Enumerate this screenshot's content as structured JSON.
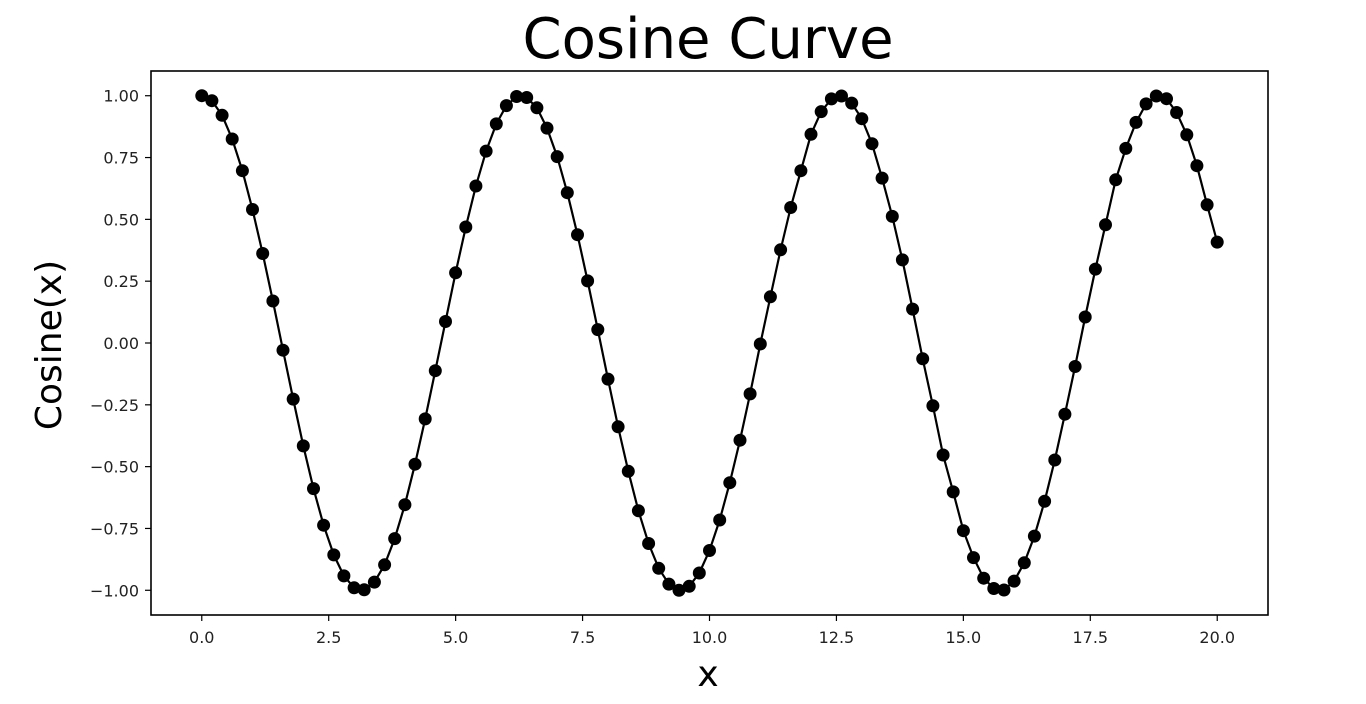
{
  "chart_data": {
    "type": "line",
    "title": "Cosine Curve",
    "xlabel": "x",
    "ylabel": "Cosine(x)",
    "xlim": [
      -1.0,
      21.0
    ],
    "ylim": [
      -1.1,
      1.1
    ],
    "x_ticks": [
      0.0,
      2.5,
      5.0,
      7.5,
      10.0,
      12.5,
      15.0,
      17.5,
      20.0
    ],
    "x_tick_labels": [
      "0.0",
      "2.5",
      "5.0",
      "7.5",
      "10.0",
      "12.5",
      "15.0",
      "17.5",
      "20.0"
    ],
    "y_ticks": [
      1.0,
      0.75,
      0.5,
      0.25,
      0.0,
      -0.25,
      -0.5,
      -0.75,
      -1.0
    ],
    "y_tick_labels": [
      "1.00",
      "0.75",
      "0.50",
      "0.25",
      "0.00",
      "−0.25",
      "−0.50",
      "−0.75",
      "−1.00"
    ],
    "grid": false,
    "line_color": "#000000",
    "marker": "circle",
    "series": [
      {
        "x": [
          0.0,
          0.2,
          0.4,
          0.6,
          0.8,
          1.0,
          1.2,
          1.4,
          1.6,
          1.8,
          2.0,
          2.2,
          2.4,
          2.6,
          2.8,
          3.0,
          3.2,
          3.4,
          3.6,
          3.8,
          4.0,
          4.2,
          4.4,
          4.6,
          4.8,
          5.0,
          5.2,
          5.4,
          5.6,
          5.8,
          6.0,
          6.2,
          6.4,
          6.6,
          6.8,
          7.0,
          7.2,
          7.4,
          7.6,
          7.8,
          8.0,
          8.2,
          8.4,
          8.6,
          8.8,
          9.0,
          9.2,
          9.4,
          9.6,
          9.8,
          10.0,
          10.2,
          10.4,
          10.6,
          10.8,
          11.0,
          11.2,
          11.4,
          11.6,
          11.8,
          12.0,
          12.2,
          12.4,
          12.6,
          12.8,
          13.0,
          13.2,
          13.4,
          13.6,
          13.8,
          14.0,
          14.2,
          14.4,
          14.6,
          14.8,
          15.0,
          15.2,
          15.4,
          15.6,
          15.8,
          16.0,
          16.2,
          16.4,
          16.6,
          16.8,
          17.0,
          17.2,
          17.4,
          17.6,
          17.8,
          18.0,
          18.2,
          18.4,
          18.6,
          18.8,
          19.0,
          19.2,
          19.4,
          19.6,
          19.8,
          20.0
        ],
        "y": [
          1.0,
          0.98,
          0.921,
          0.825,
          0.697,
          0.54,
          0.362,
          0.17,
          -0.029,
          -0.227,
          -0.416,
          -0.589,
          -0.737,
          -0.857,
          -0.942,
          -0.99,
          -0.998,
          -0.967,
          -0.897,
          -0.791,
          -0.654,
          -0.49,
          -0.307,
          -0.112,
          0.087,
          0.284,
          0.469,
          0.635,
          0.776,
          0.886,
          0.96,
          0.997,
          0.993,
          0.951,
          0.869,
          0.754,
          0.608,
          0.438,
          0.251,
          0.054,
          -0.146,
          -0.339,
          -0.519,
          -0.678,
          -0.811,
          -0.911,
          -0.975,
          -1.0,
          -0.984,
          -0.93,
          -0.839,
          -0.716,
          -0.565,
          -0.393,
          -0.206,
          -0.004,
          0.187,
          0.377,
          0.548,
          0.697,
          0.844,
          0.936,
          0.987,
          0.999,
          0.97,
          0.907,
          0.806,
          0.667,
          0.512,
          0.336,
          0.137,
          -0.064,
          -0.254,
          -0.453,
          -0.602,
          -0.759,
          -0.868,
          -0.951,
          -0.993,
          -0.999,
          -0.963,
          -0.889,
          -0.781,
          -0.64,
          -0.473,
          -0.288,
          -0.095,
          0.105,
          0.299,
          0.478,
          0.66,
          0.787,
          0.892,
          0.967,
          0.999,
          0.988,
          0.932,
          0.842,
          0.717,
          0.559,
          0.408
        ]
      }
    ]
  }
}
